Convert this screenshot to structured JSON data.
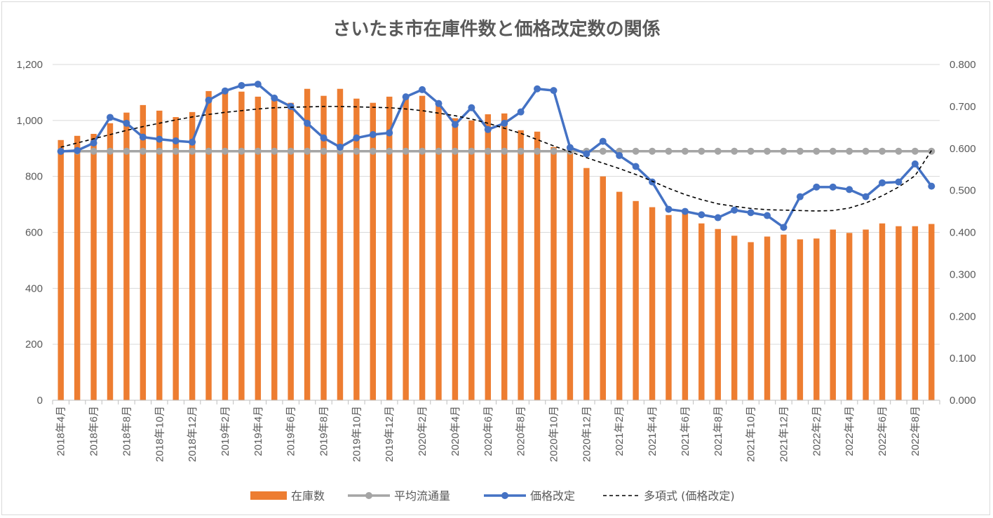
{
  "chart_data": {
    "type": "bar",
    "title": "さいたま市在庫件数と価格改定数の関係",
    "categories": [
      "2018年4月",
      "2018年5月",
      "2018年6月",
      "2018年7月",
      "2018年8月",
      "2018年9月",
      "2018年10月",
      "2018年11月",
      "2018年12月",
      "2019年1月",
      "2019年2月",
      "2019年3月",
      "2019年4月",
      "2019年5月",
      "2019年6月",
      "2019年7月",
      "2019年8月",
      "2019年9月",
      "2019年10月",
      "2019年11月",
      "2019年12月",
      "2020年1月",
      "2020年2月",
      "2020年3月",
      "2020年4月",
      "2020年5月",
      "2020年6月",
      "2020年7月",
      "2020年8月",
      "2020年9月",
      "2020年10月",
      "2020年11月",
      "2020年12月",
      "2021年1月",
      "2021年2月",
      "2021年3月",
      "2021年4月",
      "2021年5月",
      "2021年6月",
      "2021年7月",
      "2021年8月",
      "2021年9月",
      "2021年10月",
      "2021年11月",
      "2021年12月",
      "2022年1月",
      "2022年2月",
      "2022年3月",
      "2022年4月",
      "2022年5月",
      "2022年6月",
      "2022年7月",
      "2022年8月",
      "2022年9月"
    ],
    "x_tick_labels": [
      "2018年4月",
      "",
      "2018年6月",
      "",
      "2018年8月",
      "",
      "2018年10月",
      "",
      "2018年12月",
      "",
      "2019年2月",
      "",
      "2019年4月",
      "",
      "2019年6月",
      "",
      "2019年8月",
      "",
      "2019年10月",
      "",
      "2019年12月",
      "",
      "2020年2月",
      "",
      "2020年4月",
      "",
      "2020年6月",
      "",
      "2020年8月",
      "",
      "2020年10月",
      "",
      "2020年12月",
      "",
      "2021年2月",
      "",
      "2021年4月",
      "",
      "2021年6月",
      "",
      "2021年8月",
      "",
      "2021年10月",
      "",
      "2021年12月",
      "",
      "2022年2月",
      "",
      "2022年4月",
      "",
      "2022年6月",
      "",
      "2022年8月",
      ""
    ],
    "y_left": {
      "ylim": [
        0,
        1200
      ],
      "ticks": [
        "0",
        "200",
        "400",
        "600",
        "800",
        "1,000",
        "1,200"
      ]
    },
    "y_right": {
      "ylim": [
        0,
        0.8
      ],
      "ticks": [
        "0.000",
        "0.100",
        "0.200",
        "0.300",
        "0.400",
        "0.500",
        "0.600",
        "0.700",
        "0.800"
      ]
    },
    "grid": true,
    "legend_position": "bottom",
    "series": [
      {
        "name": "在庫数",
        "type": "bar",
        "axis": "left",
        "color": "#ed7d31",
        "values": [
          930,
          945,
          952,
          990,
          1028,
          1055,
          1035,
          1012,
          1030,
          1105,
          1110,
          1103,
          1085,
          1078,
          1063,
          1113,
          1088,
          1113,
          1078,
          1063,
          1085,
          1080,
          1088,
          1062,
          1008,
          1000,
          1022,
          1025,
          965,
          960,
          905,
          905,
          830,
          800,
          745,
          712,
          690,
          662,
          668,
          632,
          612,
          588,
          565,
          585,
          592,
          575,
          578,
          610,
          598,
          610,
          632,
          622,
          622,
          630
        ]
      },
      {
        "name": "平均流通量",
        "type": "line",
        "axis": "left",
        "color": "#a5a5a5",
        "values": [
          890,
          890,
          890,
          890,
          890,
          890,
          890,
          890,
          890,
          890,
          890,
          890,
          890,
          890,
          890,
          890,
          890,
          890,
          890,
          890,
          890,
          890,
          890,
          890,
          890,
          890,
          890,
          890,
          890,
          890,
          890,
          890,
          890,
          890,
          890,
          890,
          890,
          890,
          890,
          890,
          890,
          890,
          890,
          890,
          890,
          890,
          890,
          890,
          890,
          890,
          890,
          890,
          890,
          890
        ]
      },
      {
        "name": "価格改定",
        "type": "line",
        "axis": "right",
        "color": "#4472c4",
        "values": [
          0.593,
          0.595,
          0.613,
          0.674,
          0.66,
          0.627,
          0.622,
          0.618,
          0.615,
          0.715,
          0.737,
          0.75,
          0.753,
          0.72,
          0.7,
          0.66,
          0.625,
          0.603,
          0.625,
          0.633,
          0.637,
          0.723,
          0.74,
          0.707,
          0.657,
          0.697,
          0.645,
          0.66,
          0.687,
          0.742,
          0.738,
          0.602,
          0.587,
          0.617,
          0.583,
          0.557,
          0.52,
          0.455,
          0.45,
          0.442,
          0.435,
          0.453,
          0.447,
          0.44,
          0.412,
          0.485,
          0.508,
          0.508,
          0.502,
          0.485,
          0.518,
          0.52,
          0.563,
          0.51
        ]
      },
      {
        "name": "多項式 (価格改定)",
        "type": "line",
        "axis": "right",
        "color": "#000000",
        "dashed": true,
        "values": [
          0.603,
          0.613,
          0.623,
          0.633,
          0.643,
          0.652,
          0.66,
          0.668,
          0.675,
          0.681,
          0.686,
          0.69,
          0.694,
          0.697,
          0.698,
          0.699,
          0.7,
          0.7,
          0.699,
          0.698,
          0.697,
          0.694,
          0.69,
          0.684,
          0.678,
          0.67,
          0.66,
          0.648,
          0.636,
          0.621,
          0.606,
          0.592,
          0.578,
          0.565,
          0.552,
          0.538,
          0.522,
          0.505,
          0.49,
          0.478,
          0.468,
          0.462,
          0.457,
          0.454,
          0.453,
          0.452,
          0.451,
          0.452,
          0.458,
          0.47,
          0.487,
          0.508,
          0.535,
          0.595
        ]
      }
    ]
  }
}
